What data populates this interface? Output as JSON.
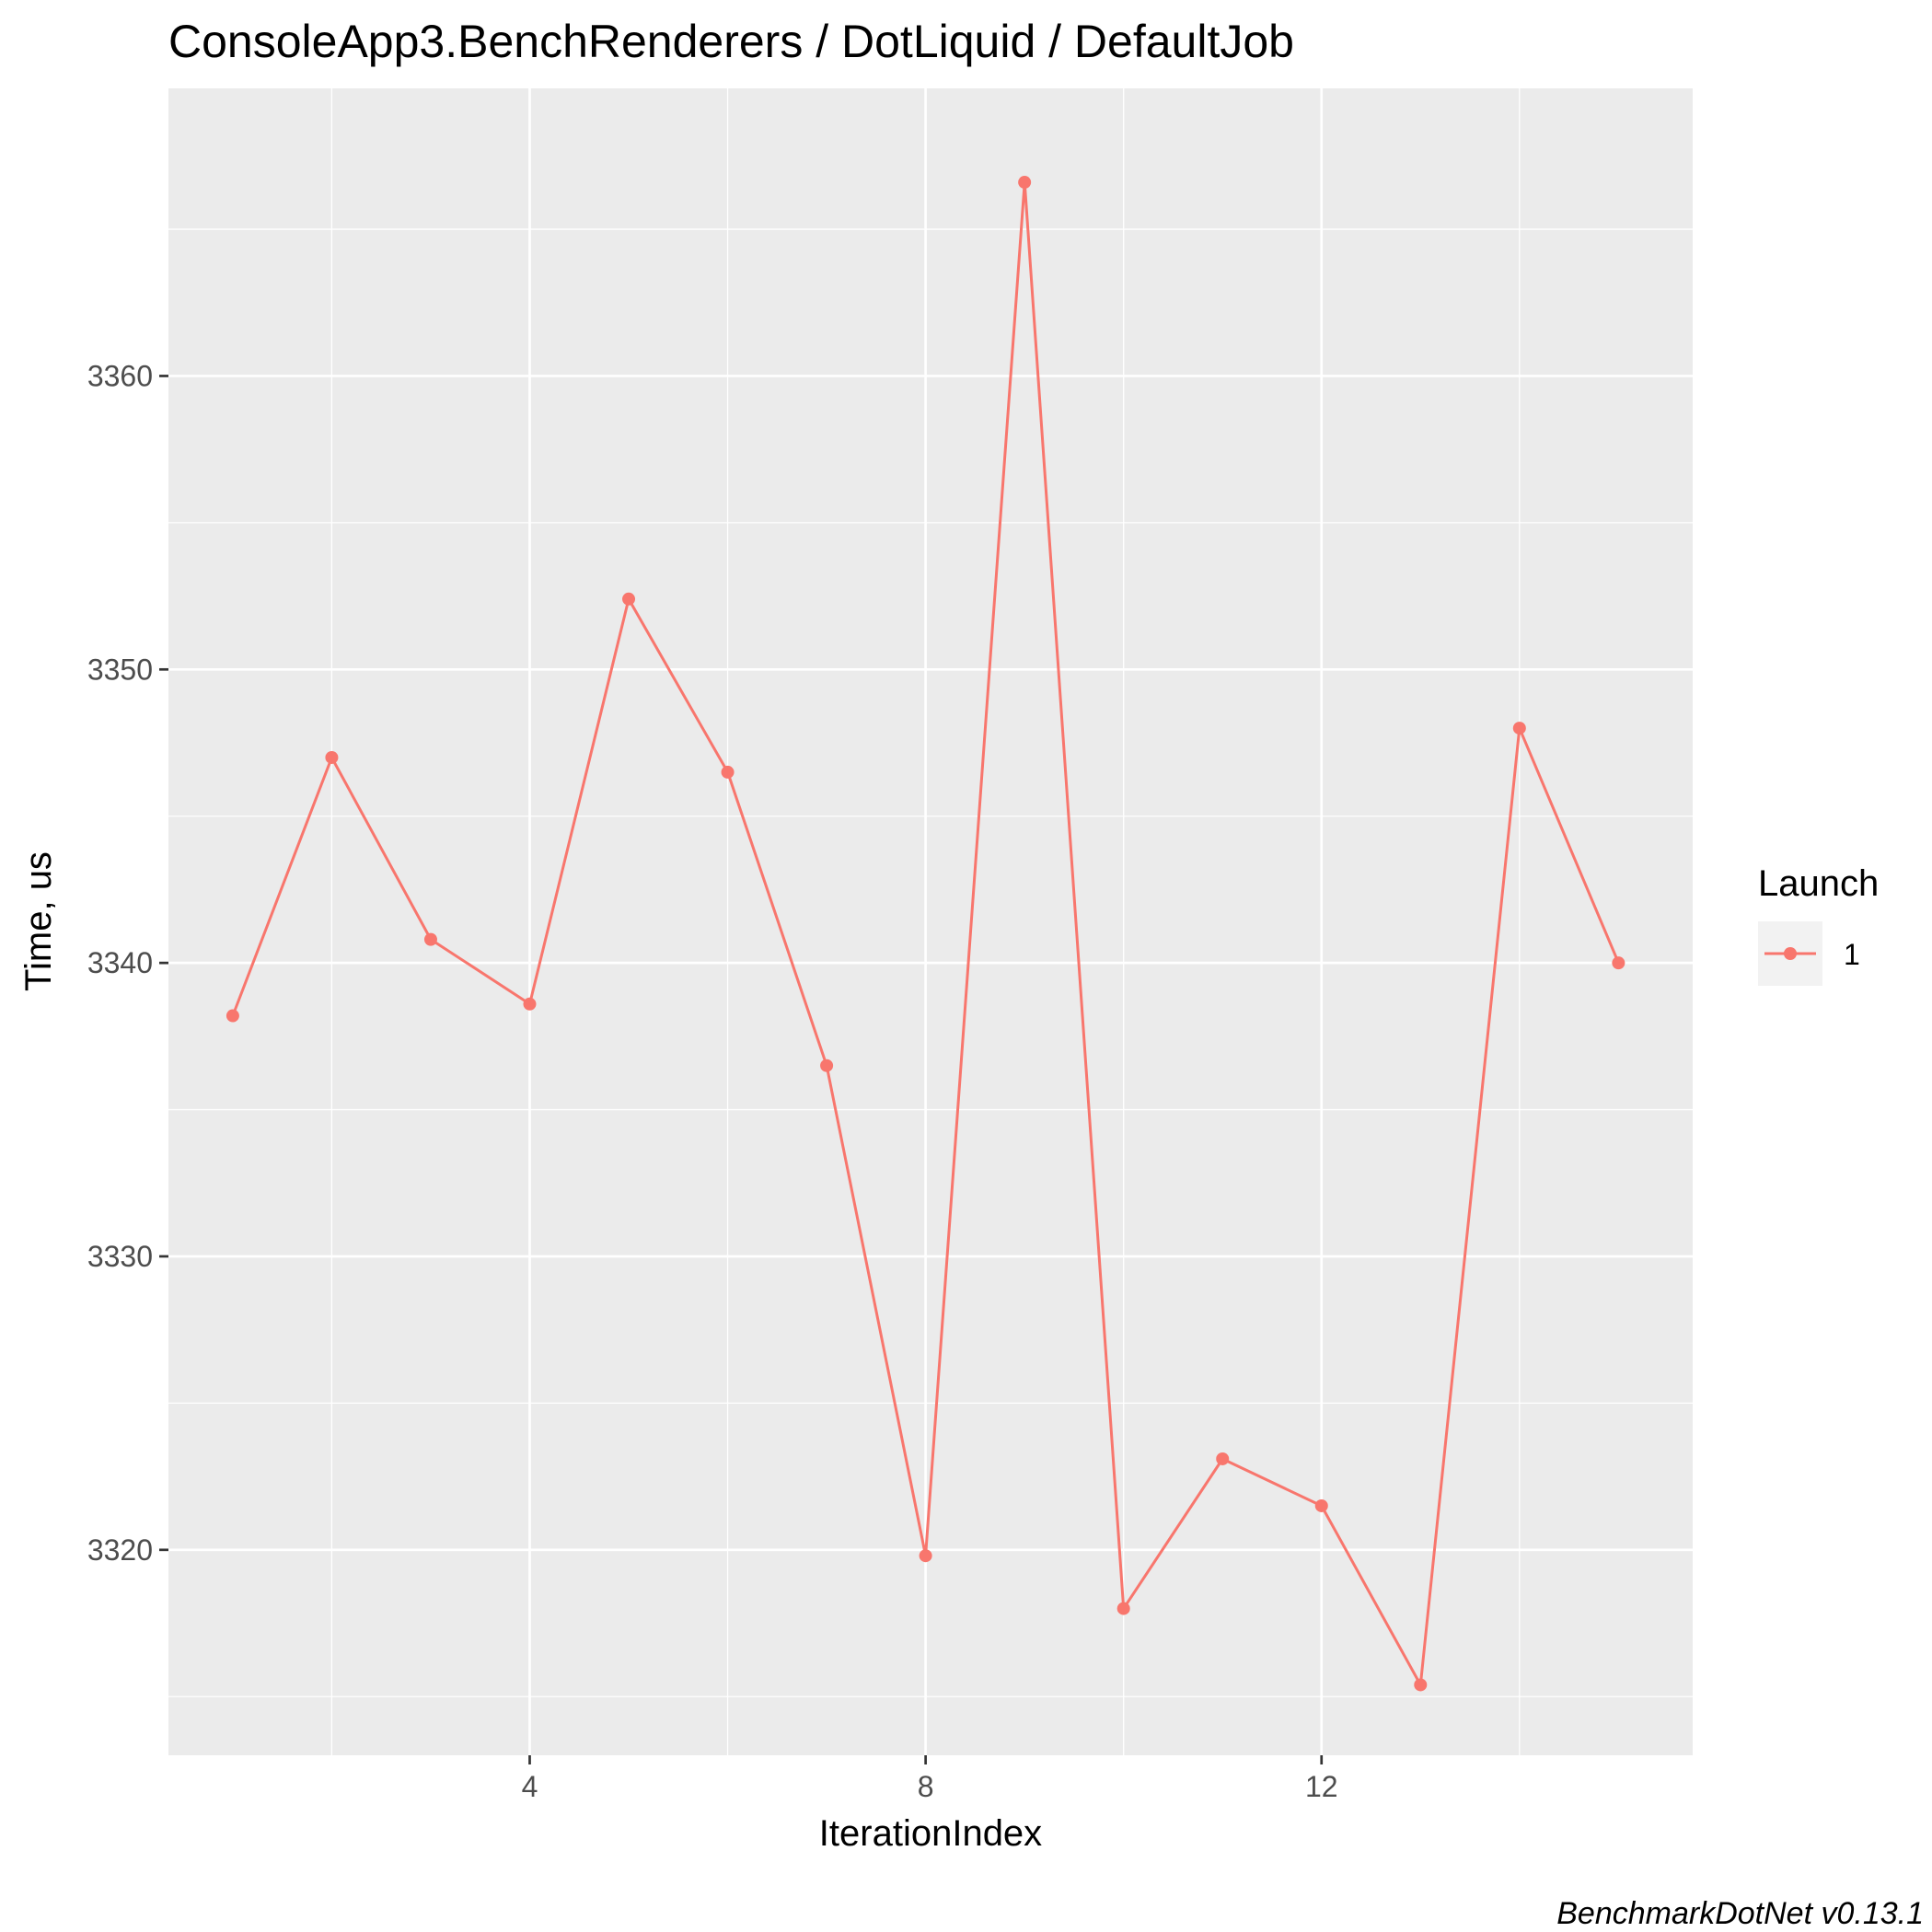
{
  "chart_data": {
    "type": "line",
    "title": "ConsoleApp3.BenchRenderers / DotLiquid / DefaultJob",
    "xlabel": "IterationIndex",
    "ylabel": "Time, us",
    "caption": "BenchmarkDotNet v0.13.1",
    "x_ticks": [
      4,
      8,
      12
    ],
    "y_ticks": [
      3320,
      3330,
      3340,
      3350,
      3360
    ],
    "xlim": [
      0.35,
      15.75
    ],
    "ylim": [
      3313.0,
      3369.8
    ],
    "grid": true,
    "legend": {
      "title": "Launch",
      "position": "right",
      "entries": [
        "1"
      ]
    },
    "series": [
      {
        "name": "1",
        "color": "#f8766d",
        "x": [
          1,
          2,
          3,
          4,
          5,
          6,
          7,
          8,
          9,
          10,
          11,
          12,
          13,
          14,
          15
        ],
        "y": [
          3338.2,
          3347.0,
          3340.8,
          3338.6,
          3352.4,
          3346.5,
          3336.5,
          3319.8,
          3366.6,
          3318.0,
          3323.1,
          3321.5,
          3315.4,
          3348.0,
          3340.0
        ]
      }
    ]
  }
}
